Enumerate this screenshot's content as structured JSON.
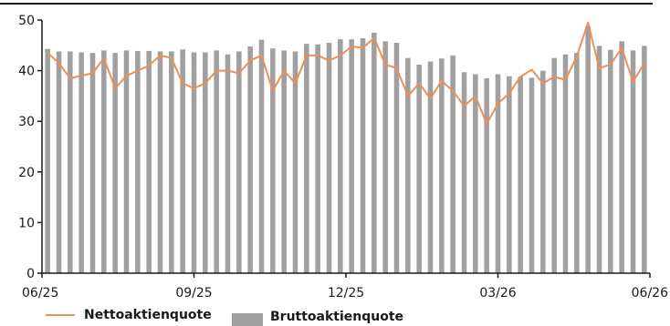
{
  "chart_data": {
    "type": "bar",
    "x_tick_labels": [
      "06/25",
      "09/25",
      "12/25",
      "03/26",
      "06/26"
    ],
    "ylim": [
      0,
      50
    ],
    "y_ticks": [
      0,
      10,
      20,
      30,
      40,
      50
    ],
    "grid": false,
    "legend_position": "bottom-left",
    "series": [
      {
        "name": "Nettoaktienquote",
        "type": "line",
        "color": "#ee8f55",
        "values": [
          43.5,
          41.5,
          38.5,
          39,
          39.5,
          42.5,
          36.5,
          39,
          40,
          41,
          43,
          42.5,
          37.5,
          36.5,
          37.5,
          40,
          40,
          39.5,
          42,
          43,
          36,
          40,
          37.5,
          43,
          43,
          42,
          43,
          44.8,
          44.5,
          46.5,
          41.2,
          40.5,
          35,
          37.5,
          34.5,
          38,
          36,
          33,
          35,
          29.5,
          33.5,
          35.5,
          38.8,
          40.2,
          37.5,
          38.8,
          38.2,
          42.8,
          49.5,
          40.5,
          41.2,
          44.5,
          37.8,
          41.5
        ]
      },
      {
        "name": "Bruttoaktienquote",
        "type": "bar",
        "color": "#a0a0a0",
        "values": [
          44.3,
          43.8,
          43.8,
          43.6,
          43.5,
          44,
          43.5,
          44,
          43.9,
          43.9,
          43.8,
          43.8,
          44.2,
          43.6,
          43.6,
          44,
          43.2,
          43.8,
          44.8,
          46.1,
          44.4,
          44,
          43.8,
          45.3,
          45.2,
          45.5,
          46.2,
          46.2,
          46.4,
          47.5,
          45.8,
          45.5,
          42.5,
          41.2,
          41.8,
          42.4,
          43,
          39.7,
          39.3,
          38.5,
          39.3,
          38.9,
          38.8,
          38.6,
          40,
          42.5,
          43.2,
          43.5,
          48.8,
          44.9,
          44.1,
          45.8,
          44,
          44.9
        ]
      }
    ]
  }
}
